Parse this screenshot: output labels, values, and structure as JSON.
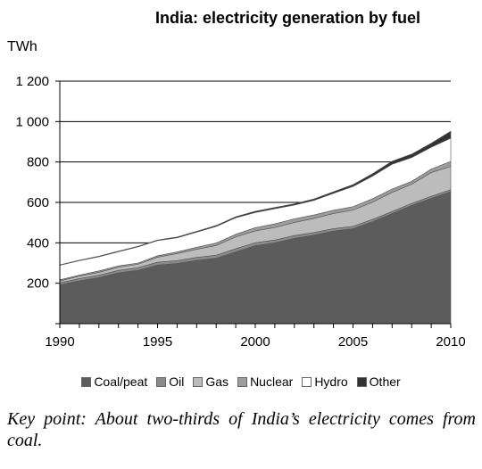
{
  "chart_data": {
    "type": "area",
    "title": "India: electricity generation by fuel",
    "ylabel": "TWh",
    "xlabel": "",
    "xlim": [
      1990,
      2010
    ],
    "ylim": [
      0,
      1200
    ],
    "x_ticks": [
      "1990",
      "1995",
      "2000",
      "2005",
      "2010"
    ],
    "y_ticks": [
      "1 200",
      "1 000",
      "800",
      "600",
      "400",
      "200"
    ],
    "x": [
      1990,
      1991,
      1992,
      1993,
      1994,
      1995,
      1996,
      1997,
      1998,
      1999,
      2000,
      2001,
      2002,
      2003,
      2004,
      2005,
      2006,
      2007,
      2008,
      2009,
      2010
    ],
    "stacked": true,
    "grid": "horizontal",
    "legend_position": "bottom",
    "series": [
      {
        "name": "Coal/peat",
        "color": "#5c5c5c",
        "values": [
          192,
          212,
          228,
          252,
          264,
          290,
          298,
          313,
          324,
          355,
          386,
          400,
          422,
          438,
          458,
          470,
          505,
          545,
          585,
          620,
          653
        ]
      },
      {
        "name": "Oil",
        "color": "#8a8a8a",
        "values": [
          10,
          11,
          12,
          12,
          13,
          14,
          14,
          15,
          15,
          16,
          15,
          14,
          14,
          13,
          12,
          12,
          11,
          10,
          10,
          10,
          10
        ]
      },
      {
        "name": "Gas",
        "color": "#bcbcbc",
        "values": [
          9,
          12,
          14,
          15,
          17,
          25,
          35,
          40,
          48,
          58,
          58,
          62,
          65,
          70,
          75,
          80,
          85,
          95,
          95,
          118,
          115
        ]
      },
      {
        "name": "Nuclear",
        "color": "#9c9c9c",
        "values": [
          6,
          5,
          7,
          7,
          6,
          7,
          8,
          10,
          12,
          13,
          16,
          18,
          18,
          17,
          16,
          17,
          17,
          16,
          14,
          17,
          25
        ]
      },
      {
        "name": "Hydro",
        "color": "#ffffff",
        "values": [
          72,
          72,
          70,
          70,
          80,
          75,
          70,
          75,
          82,
          82,
          75,
          75,
          68,
          72,
          84,
          100,
          112,
          123,
          118,
          108,
          115
        ]
      },
      {
        "name": "Other",
        "color": "#333333",
        "values": [
          2,
          2,
          3,
          3,
          3,
          3,
          4,
          4,
          5,
          5,
          6,
          6,
          6,
          7,
          8,
          9,
          12,
          15,
          17,
          20,
          34
        ]
      }
    ]
  },
  "caption": "Key point: About two-thirds of India’s electricity comes from coal."
}
